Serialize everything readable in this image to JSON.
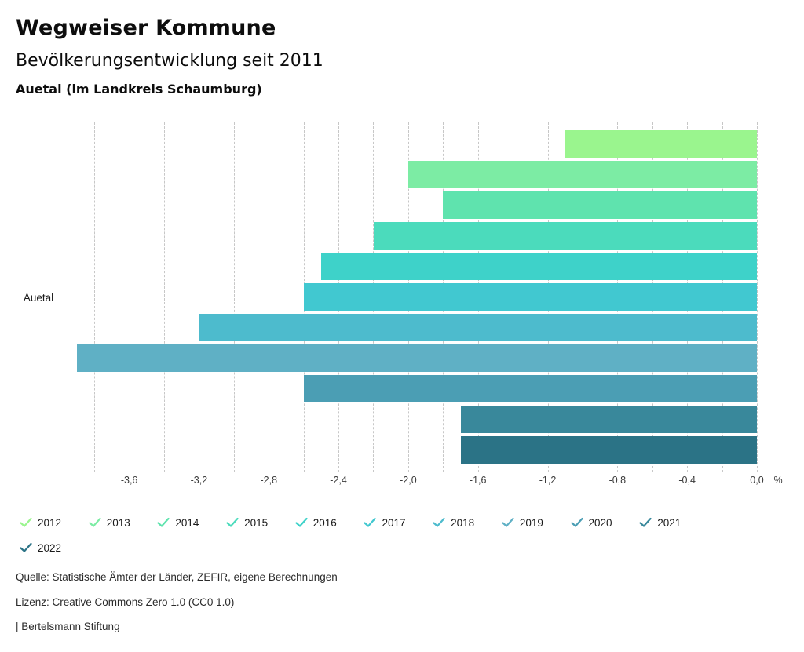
{
  "header": {
    "title": "Wegweiser Kommune",
    "subtitle": "Bevölkerungsentwicklung seit 2011",
    "region": "Auetal (im Landkreis Schaumburg)"
  },
  "chart_data": {
    "type": "bar",
    "orientation": "horizontal",
    "title": "Bevölkerungsentwicklung seit 2011",
    "category_label": "Auetal",
    "unit": "%",
    "xlim": [
      -3.9,
      0
    ],
    "grid_step": 0.2,
    "grid": "dashed-vertical",
    "legend_position": "bottom",
    "series": [
      {
        "name": "2012",
        "value": -1.1,
        "color": "#9af58e"
      },
      {
        "name": "2013",
        "value": -2.0,
        "color": "#7ceca4"
      },
      {
        "name": "2014",
        "value": -1.8,
        "color": "#5fe3ae"
      },
      {
        "name": "2015",
        "value": -2.2,
        "color": "#4bdbbc"
      },
      {
        "name": "2016",
        "value": -2.5,
        "color": "#3ed2c9"
      },
      {
        "name": "2017",
        "value": -2.6,
        "color": "#41c8d0"
      },
      {
        "name": "2018",
        "value": -3.2,
        "color": "#4dbbcd"
      },
      {
        "name": "2019",
        "value": -3.9,
        "color": "#5fb0c5"
      },
      {
        "name": "2020",
        "value": -2.6,
        "color": "#4b9eb4"
      },
      {
        "name": "2021",
        "value": -1.7,
        "color": "#39889b"
      },
      {
        "name": "2022",
        "value": -1.7,
        "color": "#2b7386"
      }
    ],
    "x_ticks": [
      {
        "label": "-3,6",
        "value": -3.6
      },
      {
        "label": "-3,2",
        "value": -3.2
      },
      {
        "label": "-2,8",
        "value": -2.8
      },
      {
        "label": "-2,4",
        "value": -2.4
      },
      {
        "label": "-2,0",
        "value": -2.0
      },
      {
        "label": "-1,6",
        "value": -1.6
      },
      {
        "label": "-1,2",
        "value": -1.2
      },
      {
        "label": "-0,8",
        "value": -0.8
      },
      {
        "label": "-0,4",
        "value": -0.4
      },
      {
        "label": "0,0",
        "value": 0.0
      }
    ]
  },
  "footer": {
    "source": "Quelle: Statistische Ämter der Länder, ZEFIR, eigene Berechnungen",
    "license": "Lizenz: Creative Commons Zero 1.0 (CC0 1.0)",
    "attribution": "| Bertelsmann Stiftung"
  }
}
